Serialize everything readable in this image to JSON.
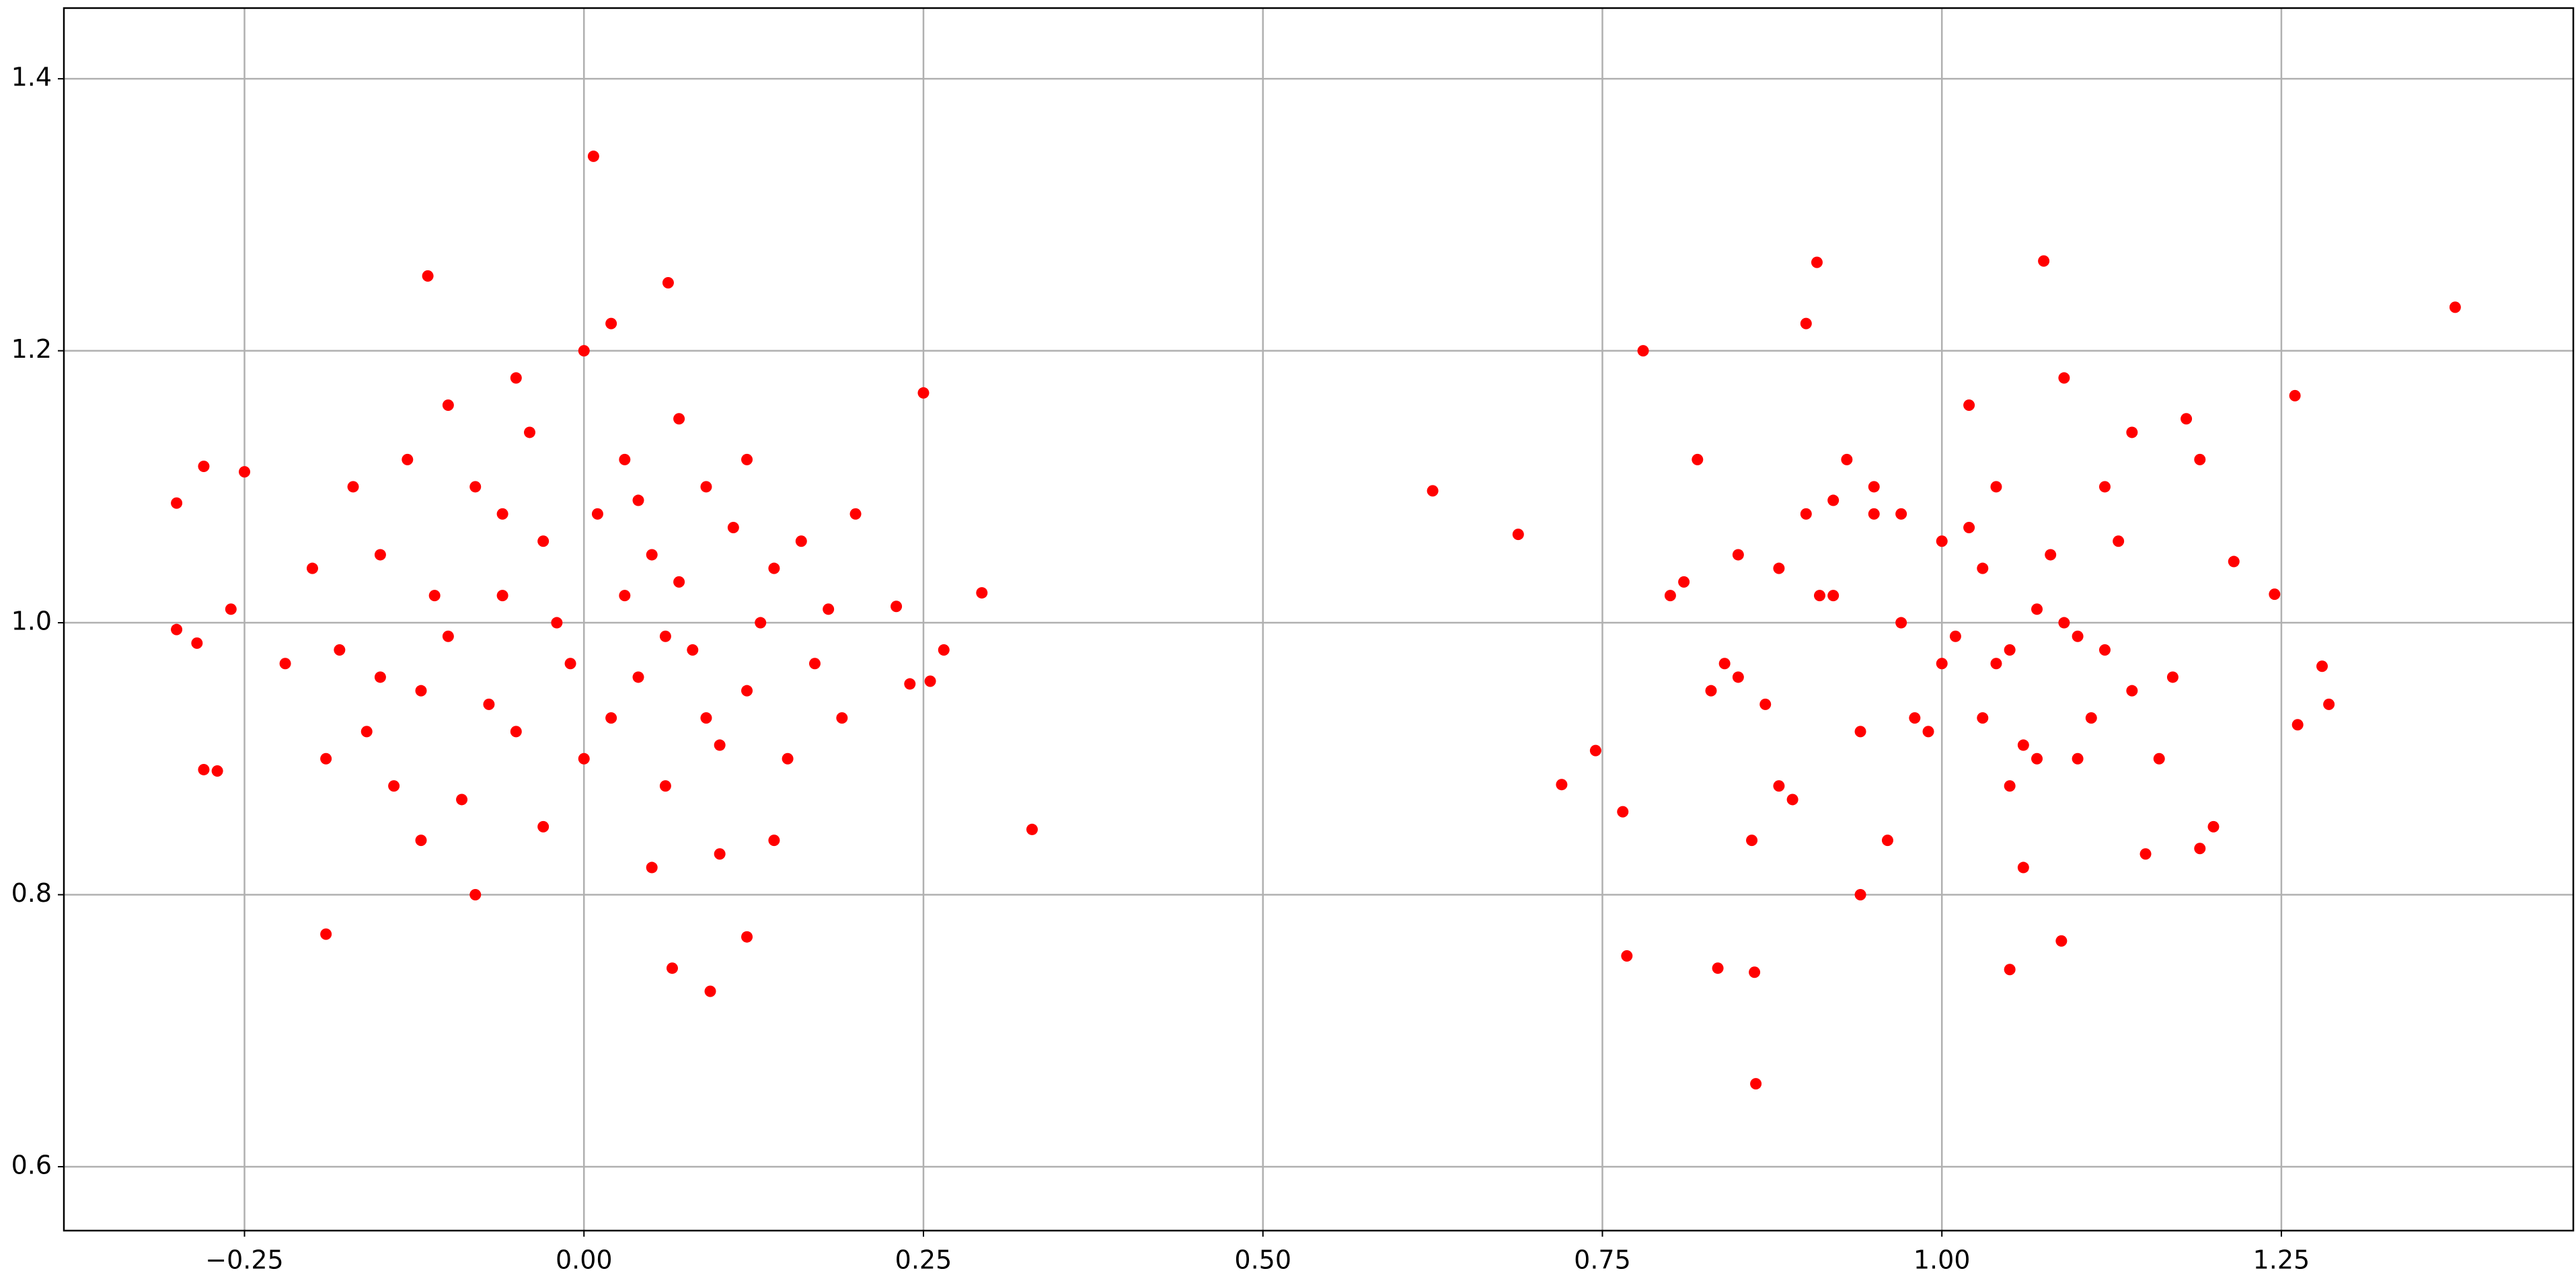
{
  "chart_data": {
    "type": "scatter",
    "color": "#ff0000",
    "grid": true,
    "xlim": [
      -0.383,
      1.465
    ],
    "ylim": [
      0.553,
      1.452
    ],
    "xticks": [
      {
        "value": -0.25,
        "label": "−0.25"
      },
      {
        "value": 0,
        "label": "0.00"
      },
      {
        "value": 0.25,
        "label": "0.25"
      },
      {
        "value": 0.5,
        "label": "0.50"
      },
      {
        "value": 0.75,
        "label": "0.75"
      },
      {
        "value": 1,
        "label": "1.00"
      },
      {
        "value": 1.25,
        "label": "1.25"
      }
    ],
    "yticks": [
      0.6,
      0.8,
      {
        "value": 1,
        "label": "1.0"
      },
      1.2,
      1.4
    ],
    "x": [
      0.33,
      0.293,
      0.25,
      -0.3,
      -0.3,
      -0.28,
      -0.27,
      -0.19,
      0.007,
      -0.115,
      0.062,
      0.093,
      0.065,
      0.12,
      0.265,
      0.24,
      -0.285,
      -0.26,
      -0.28,
      -0.25,
      0.23,
      0.255,
      -0.15,
      -0.12,
      -0.08,
      -0.05,
      -0.02,
      0.01,
      0.04,
      0.07,
      0.1,
      0.13,
      0.16,
      -0.18,
      -0.14,
      -0.1,
      -0.06,
      -0.03,
      0.0,
      0.03,
      0.06,
      0.09,
      0.12,
      0.15,
      0.18,
      -0.2,
      -0.16,
      -0.11,
      -0.07,
      -0.04,
      0.02,
      0.05,
      0.08,
      0.11,
      0.14,
      -0.13,
      -0.09,
      -0.01,
      0.03,
      0.07,
      0.1,
      -0.17,
      -0.05,
      0.05,
      0.19,
      -0.22,
      0.2,
      -0.08,
      0.02,
      -0.12,
      0.12,
      0.0,
      -0.03,
      0.06,
      -0.19,
      0.17,
      -0.1,
      0.09,
      -0.06,
      0.04,
      0.14,
      -0.15,
      0.625,
      0.688,
      0.72,
      0.745,
      0.768,
      0.863,
      1.378,
      1.26,
      1.285,
      1.262,
      1.28,
      1.245,
      1.075,
      0.908,
      0.862,
      0.835,
      1.05,
      1.088,
      1.215,
      1.19,
      0.765,
      0.85,
      0.88,
      0.92,
      0.95,
      0.98,
      1.01,
      1.04,
      1.07,
      1.1,
      1.13,
      1.16,
      0.82,
      0.86,
      0.9,
      0.94,
      0.97,
      1.0,
      1.03,
      1.06,
      1.09,
      1.12,
      1.15,
      1.18,
      0.8,
      0.84,
      0.89,
      0.93,
      0.96,
      1.02,
      1.05,
      1.08,
      1.11,
      1.14,
      0.87,
      0.91,
      0.99,
      1.03,
      1.07,
      1.1,
      0.83,
      0.95,
      1.05,
      1.19,
      0.78,
      1.2,
      0.92,
      1.02,
      0.88,
      1.12,
      1.0,
      0.97,
      1.06,
      0.81,
      1.17,
      0.9,
      1.09,
      0.94,
      1.04,
      1.14,
      0.85
    ],
    "values": [
      0.848,
      1.022,
      1.169,
      1.088,
      0.995,
      0.892,
      0.891,
      0.771,
      1.343,
      1.255,
      1.25,
      0.729,
      0.746,
      0.769,
      0.98,
      0.955,
      0.985,
      1.01,
      1.115,
      1.111,
      1.012,
      0.957,
      1.05,
      0.95,
      1.1,
      0.92,
      1.0,
      1.08,
      0.96,
      1.03,
      0.91,
      1.0,
      1.06,
      0.98,
      0.88,
      1.16,
      1.02,
      0.85,
      1.2,
      1.12,
      0.88,
      1.1,
      0.95,
      0.9,
      1.01,
      1.04,
      0.92,
      1.02,
      0.94,
      1.14,
      0.93,
      1.05,
      0.98,
      1.07,
      0.84,
      1.12,
      0.87,
      0.97,
      1.02,
      1.15,
      0.83,
      1.1,
      1.18,
      0.82,
      0.93,
      0.97,
      1.08,
      0.8,
      1.22,
      0.84,
      1.12,
      0.9,
      1.06,
      0.99,
      0.9,
      0.97,
      0.99,
      0.93,
      1.08,
      1.09,
      1.04,
      0.96,
      1.097,
      1.065,
      0.881,
      0.906,
      0.755,
      0.661,
      1.232,
      1.167,
      0.94,
      0.925,
      0.968,
      1.021,
      1.266,
      1.265,
      0.743,
      0.746,
      0.745,
      0.766,
      1.045,
      0.834,
      0.861,
      0.96,
      1.04,
      1.09,
      1.08,
      0.93,
      0.99,
      0.97,
      0.9,
      0.99,
      1.06,
      0.9,
      1.12,
      0.84,
      1.22,
      0.8,
      1.08,
      0.97,
      0.93,
      0.82,
      1.18,
      1.1,
      0.83,
      1.15,
      1.02,
      0.97,
      0.87,
      1.12,
      0.84,
      1.07,
      0.98,
      1.05,
      0.93,
      1.14,
      0.94,
      1.02,
      0.92,
      1.04,
      1.01,
      0.9,
      0.95,
      1.1,
      0.88,
      1.12,
      1.2,
      0.85,
      1.02,
      1.16,
      0.88,
      0.98,
      1.06,
      1.0,
      0.91,
      1.03,
      0.96,
      1.08,
      1.0,
      0.92,
      1.1,
      0.95,
      1.05
    ]
  }
}
